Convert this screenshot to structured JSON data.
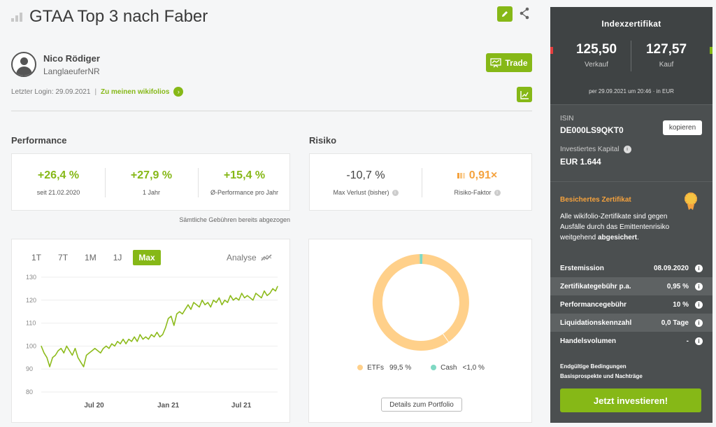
{
  "header": {
    "title": "GTAA Top 3 nach Faber"
  },
  "user": {
    "name": "Nico Rödiger",
    "handle": "LanglaeuferNR",
    "last_login": "Letzter Login: 29.09.2021",
    "separator": "|",
    "wikifolios_link": "Zu meinen wikifolios"
  },
  "trade_label": "Trade",
  "performance": {
    "title": "Performance",
    "items": [
      {
        "value": "+26,4 %",
        "label": "seit 21.02.2020"
      },
      {
        "value": "+27,9 %",
        "label": "1 Jahr"
      },
      {
        "value": "+15,4 %",
        "label": "Ø-Performance pro Jahr"
      }
    ],
    "fee_note": "Sämtliche Gebühren bereits abgezogen"
  },
  "risk": {
    "title": "Risiko",
    "max_loss_value": "-10,7 %",
    "max_loss_label": "Max Verlust (bisher)",
    "risk_factor_value": "0,91",
    "risk_factor_suffix": "×",
    "risk_factor_label": "Risiko-Faktor"
  },
  "chart_tabs": [
    "1T",
    "7T",
    "1M",
    "1J",
    "Max"
  ],
  "chart_active_tab": "Max",
  "analyse_label": "Analyse",
  "chart_data": [
    {
      "type": "line",
      "title": "",
      "xlabel": "",
      "ylabel": "",
      "ylim": [
        80,
        130
      ],
      "yticks": [
        130,
        120,
        110,
        100,
        90,
        80
      ],
      "xtick_labels": [
        "Jul 20",
        "Jan 21",
        "Jul 21"
      ],
      "x_domain": [
        "2020-02-21",
        "2021-09-29"
      ],
      "xtick_dates": [
        "2020-07-01",
        "2021-01-01",
        "2021-07-01"
      ],
      "line_color": "#8dbb1c",
      "series": [
        {
          "x": [
            "2020-02-21",
            "2020-02-28",
            "2020-03-06",
            "2020-03-13",
            "2020-03-20",
            "2020-03-27",
            "2020-04-03",
            "2020-04-10",
            "2020-04-17",
            "2020-04-24",
            "2020-05-01",
            "2020-05-08",
            "2020-05-15",
            "2020-05-22",
            "2020-05-29",
            "2020-06-05",
            "2020-06-12",
            "2020-06-19",
            "2020-06-26",
            "2020-07-03",
            "2020-07-10",
            "2020-07-17",
            "2020-07-24",
            "2020-07-31",
            "2020-08-07",
            "2020-08-14",
            "2020-08-21",
            "2020-08-28",
            "2020-09-04",
            "2020-09-11",
            "2020-09-18",
            "2020-09-25",
            "2020-10-02",
            "2020-10-09",
            "2020-10-16",
            "2020-10-23",
            "2020-10-30",
            "2020-11-06",
            "2020-11-13",
            "2020-11-20",
            "2020-11-27",
            "2020-12-04",
            "2020-12-11",
            "2020-12-18",
            "2020-12-25",
            "2021-01-01",
            "2021-01-08",
            "2021-01-15",
            "2021-01-22",
            "2021-01-29",
            "2021-02-05",
            "2021-02-12",
            "2021-02-19",
            "2021-02-26",
            "2021-03-05",
            "2021-03-12",
            "2021-03-19",
            "2021-03-26",
            "2021-04-02",
            "2021-04-09",
            "2021-04-16",
            "2021-04-23",
            "2021-04-30",
            "2021-05-07",
            "2021-05-14",
            "2021-05-21",
            "2021-05-28",
            "2021-06-04",
            "2021-06-11",
            "2021-06-18",
            "2021-06-25",
            "2021-07-02",
            "2021-07-09",
            "2021-07-16",
            "2021-07-23",
            "2021-07-30",
            "2021-08-06",
            "2021-08-13",
            "2021-08-20",
            "2021-08-27",
            "2021-09-03",
            "2021-09-10",
            "2021-09-17",
            "2021-09-24",
            "2021-09-29"
          ],
          "y": [
            100,
            97,
            95,
            91,
            95,
            96,
            98,
            99,
            97,
            100,
            98,
            96,
            99,
            95,
            93,
            91,
            96,
            97,
            98,
            99,
            98,
            97,
            99,
            100,
            99,
            101,
            100,
            102,
            101,
            103,
            101,
            103,
            102,
            104,
            102,
            105,
            103,
            104,
            103,
            105,
            104,
            106,
            104,
            105,
            108,
            112,
            113,
            109,
            114,
            115,
            114,
            116,
            118,
            116,
            119,
            118,
            117,
            120,
            118,
            119,
            117,
            120,
            119,
            121,
            118,
            120,
            119,
            122,
            120,
            121,
            120,
            123,
            121,
            122,
            121,
            120,
            123,
            122,
            121,
            124,
            122,
            123,
            125,
            124,
            126
          ]
        }
      ]
    },
    {
      "type": "pie",
      "title": "",
      "labels": [
        "ETFs",
        "Cash"
      ],
      "values": [
        99.5,
        1.0
      ],
      "display_values": [
        "99,5 %",
        "<1,0 %"
      ],
      "colors": [
        "#ffd08a",
        "#7fd8c3"
      ],
      "donut": true
    }
  ],
  "details_button": "Details zum Portfolio",
  "sidebar": {
    "title": "Indexzertifikat",
    "sell_price": "125,50",
    "sell_label": "Verkauf",
    "buy_price": "127,57",
    "buy_label": "Kauf",
    "date_note": "per 29.09.2021 um 20:46 · in EUR",
    "isin_label": "ISIN",
    "isin_value": "DE000LS9QKT0",
    "copy_label": "kopieren",
    "capital_label": "Investiertes Kapital",
    "capital_value": "EUR 1.644",
    "secured_title": "Besichertes Zertifikat",
    "secured_text": "Alle wikifolio-Zertifikate sind gegen Ausfälle durch das Emittentenrisiko weitgehend",
    "secured_bold": "abgesichert",
    "secured_end": ".",
    "rows": [
      {
        "key": "Erstemission",
        "value": "08.09.2020"
      },
      {
        "key": "Zertifikategebühr p.a.",
        "value": "0,95 %"
      },
      {
        "key": "Performancegebühr",
        "value": "10 %"
      },
      {
        "key": "Liquidationskennzahl",
        "value": "0,0 Tage"
      },
      {
        "key": "Handelsvolumen",
        "value": "-"
      }
    ],
    "terms_1": "Endgültige Bedingungen",
    "terms_2": "Basisprospekte und Nachträge",
    "invest_button": "Jetzt investieren!"
  },
  "colors": {
    "accent": "#86b817",
    "orange": "#f5a23d",
    "sidebar_bg": "#4b4f50"
  }
}
